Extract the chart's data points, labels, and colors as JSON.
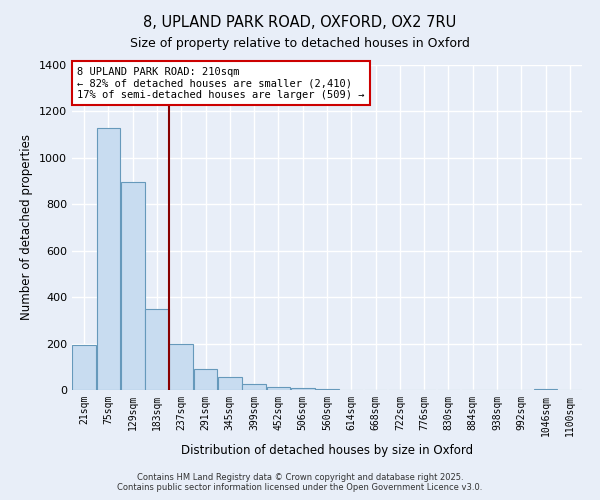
{
  "title": "8, UPLAND PARK ROAD, OXFORD, OX2 7RU",
  "subtitle": "Size of property relative to detached houses in Oxford",
  "xlabel": "Distribution of detached houses by size in Oxford",
  "ylabel": "Number of detached properties",
  "bar_color": "#c8dcf0",
  "bar_edge_color": "#6699bb",
  "background_color": "#e8eef8",
  "plot_bg_color": "#e8eef8",
  "grid_color": "#ffffff",
  "bin_labels": [
    "21sqm",
    "75sqm",
    "129sqm",
    "183sqm",
    "237sqm",
    "291sqm",
    "345sqm",
    "399sqm",
    "452sqm",
    "506sqm",
    "560sqm",
    "614sqm",
    "668sqm",
    "722sqm",
    "776sqm",
    "830sqm",
    "884sqm",
    "938sqm",
    "992sqm",
    "1046sqm",
    "1100sqm"
  ],
  "bar_values": [
    195,
    1130,
    895,
    350,
    200,
    92,
    58,
    25,
    15,
    10,
    5,
    0,
    0,
    0,
    0,
    0,
    0,
    0,
    0,
    5,
    0
  ],
  "vline_x": 3.5,
  "vline_color": "#880000",
  "annotation_title": "8 UPLAND PARK ROAD: 210sqm",
  "annotation_line1": "← 82% of detached houses are smaller (2,410)",
  "annotation_line2": "17% of semi-detached houses are larger (509) →",
  "annotation_box_facecolor": "#ffffff",
  "annotation_box_edgecolor": "#cc0000",
  "ylim": [
    0,
    1400
  ],
  "yticks": [
    0,
    200,
    400,
    600,
    800,
    1000,
    1200,
    1400
  ],
  "footer1": "Contains HM Land Registry data © Crown copyright and database right 2025.",
  "footer2": "Contains public sector information licensed under the Open Government Licence v3.0."
}
